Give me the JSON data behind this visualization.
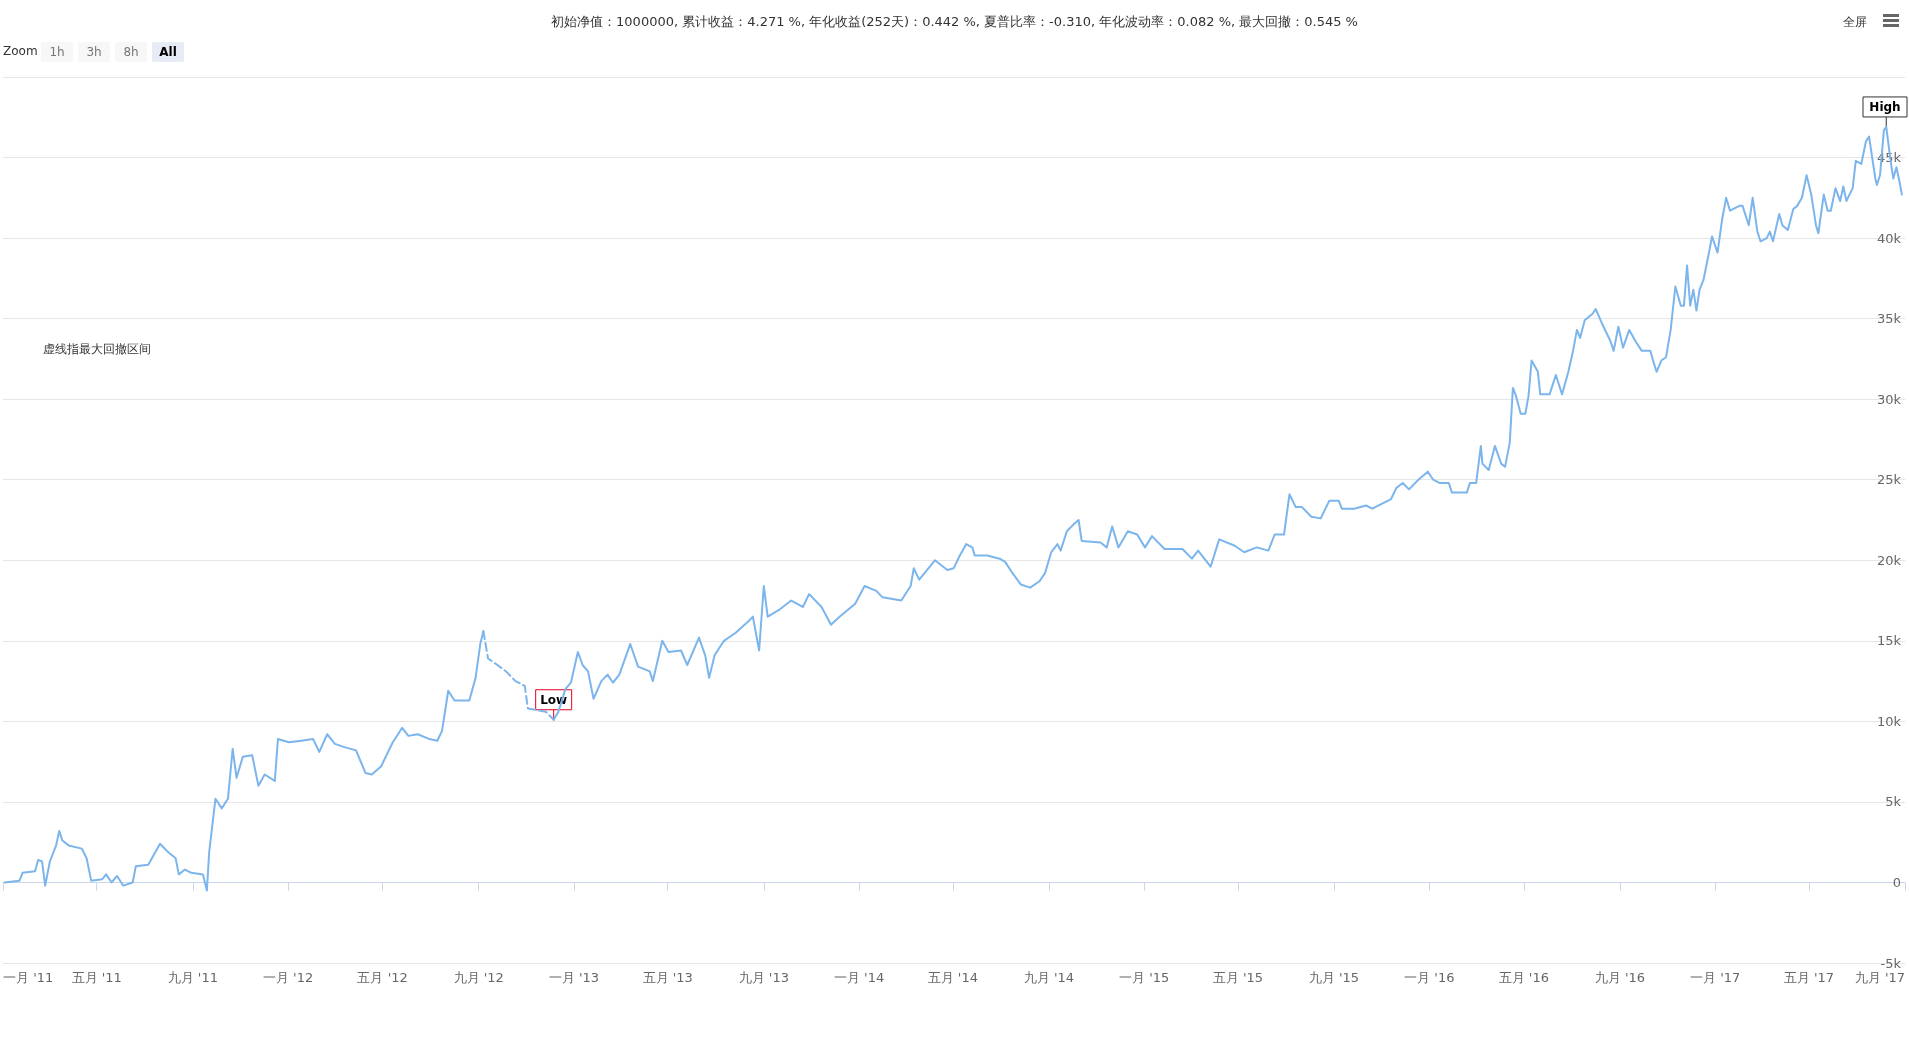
{
  "chart_data": {
    "type": "line",
    "title": "初始净值：1000000, 累计收益：4.271 %, 年化收益(252天)：0.442 %, 夏普比率：-0.310, 年化波动率：0.082 %, 最大回撤：0.545 %",
    "annotations": [
      "虚线指最大回撤区间",
      "Zoom",
      "1h",
      "3h",
      "8h",
      "All",
      "全屏",
      {
        "text": "Low",
        "x": "2012-12-06",
        "y": 10100
      },
      {
        "text": "High",
        "x": "2017-08-08",
        "y": 46900
      }
    ],
    "xlim": [
      "2011-01-01",
      "2017-09-01"
    ],
    "xticks": [
      {
        "value": "2011-01-01",
        "label": "一月 '11"
      },
      {
        "value": "2011-05-01",
        "label": "五月 '11"
      },
      {
        "value": "2011-09-01",
        "label": "九月 '11"
      },
      {
        "value": "2012-01-01",
        "label": "一月 '12"
      },
      {
        "value": "2012-05-01",
        "label": "五月 '12"
      },
      {
        "value": "2012-09-01",
        "label": "九月 '12"
      },
      {
        "value": "2013-01-01",
        "label": "一月 '13"
      },
      {
        "value": "2013-05-01",
        "label": "五月 '13"
      },
      {
        "value": "2013-09-01",
        "label": "九月 '13"
      },
      {
        "value": "2014-01-01",
        "label": "一月 '14"
      },
      {
        "value": "2014-05-01",
        "label": "五月 '14"
      },
      {
        "value": "2014-09-01",
        "label": "九月 '14"
      },
      {
        "value": "2015-01-01",
        "label": "一月 '15"
      },
      {
        "value": "2015-05-01",
        "label": "五月 '15"
      },
      {
        "value": "2015-09-01",
        "label": "九月 '15"
      },
      {
        "value": "2016-01-01",
        "label": "一月 '16"
      },
      {
        "value": "2016-05-01",
        "label": "五月 '16"
      },
      {
        "value": "2016-09-01",
        "label": "九月 '16"
      },
      {
        "value": "2017-01-01",
        "label": "一月 '17"
      },
      {
        "value": "2017-05-01",
        "label": "五月 '17"
      },
      {
        "value": "2017-09-01",
        "label": "九月 '17"
      }
    ],
    "ylim": [
      -5000,
      50000
    ],
    "yticks": [
      {
        "value": -5000,
        "label": "-5k"
      },
      0,
      {
        "value": 5000,
        "label": "5k"
      },
      {
        "value": 10000,
        "label": "10k"
      },
      {
        "value": 15000,
        "label": "15k"
      },
      {
        "value": 20000,
        "label": "20k"
      },
      {
        "value": 25000,
        "label": "25k"
      },
      {
        "value": 30000,
        "label": "30k"
      },
      {
        "value": 35000,
        "label": "35k"
      },
      {
        "value": 40000,
        "label": "40k"
      },
      {
        "value": 45000,
        "label": "45k"
      },
      {
        "value": 50000,
        "label": null
      }
    ],
    "grid": "y",
    "series": [
      {
        "color": "#7cb5ec",
        "line_style": "solid",
        "x": [
          "2011-01-03",
          "2011-01-22",
          "2011-01-26",
          "2011-02-11",
          "2011-02-15",
          "2011-02-20",
          "2011-02-24",
          "2011-03-02",
          "2011-03-10",
          "2011-03-14",
          "2011-03-18",
          "2011-03-26",
          "2011-04-12",
          "2011-04-18",
          "2011-04-24",
          "2011-05-08",
          "2011-05-13",
          "2011-05-20",
          "2011-05-27",
          "2011-06-04",
          "2011-06-16",
          "2011-06-20",
          "2011-07-06",
          "2011-07-21",
          "2011-07-31",
          "2011-08-10",
          "2011-08-14",
          "2011-08-22",
          "2011-08-30",
          "2011-09-14",
          "2011-09-19",
          "2011-09-22",
          "2011-09-30",
          "2011-10-08",
          "2011-10-16",
          "2011-10-22",
          "2011-10-27",
          "2011-11-04",
          "2011-11-16",
          "2011-11-24",
          "2011-12-02",
          "2011-12-15",
          "2011-12-19",
          "2012-01-02",
          "2012-01-18",
          "2012-02-02",
          "2012-02-10",
          "2012-02-20",
          "2012-03-01",
          "2012-03-13",
          "2012-03-28",
          "2012-04-09",
          "2012-04-17",
          "2012-04-29",
          "2012-05-14",
          "2012-05-26",
          "2012-06-03",
          "2012-06-15",
          "2012-06-30",
          "2012-07-10",
          "2012-07-16",
          "2012-07-24",
          "2012-08-01",
          "2012-08-20",
          "2012-08-28",
          "2012-09-03",
          "2012-09-07"
        ],
        "values": [
          0,
          100,
          600,
          700,
          1400,
          1300,
          -200,
          1300,
          2300,
          3200,
          2600,
          2300,
          2100,
          1500,
          100,
          200,
          500,
          0,
          400,
          -200,
          0,
          1000,
          1100,
          2400,
          1900,
          1500,
          500,
          800,
          600,
          500,
          -500,
          1900,
          5200,
          4600,
          5200,
          8300,
          6500,
          7800,
          7900,
          6000,
          6700,
          6300,
          8900,
          8700,
          8800,
          8900,
          8100,
          9200,
          8600,
          8400,
          8200,
          6800,
          6700,
          7200,
          8700,
          9600,
          9100,
          9200,
          8900,
          8800,
          9400,
          11900,
          11300,
          11300,
          12700,
          14800,
          15600
        ]
      },
      {
        "color": "#7cb5ec",
        "line_style": "dashed",
        "x": [
          "2012-09-07",
          "2012-09-13",
          "2012-09-25",
          "2012-10-06",
          "2012-10-18",
          "2012-10-30",
          "2012-11-03",
          "2012-11-14",
          "2012-11-26",
          "2012-12-06"
        ],
        "values": [
          15600,
          13900,
          13500,
          13100,
          12500,
          12200,
          10800,
          10700,
          10600,
          10100
        ]
      },
      {
        "color": "#7cb5ec",
        "line_style": "solid",
        "x": [
          "2012-12-06",
          "2012-12-12",
          "2012-12-21",
          "2012-12-28",
          "2013-01-06",
          "2013-01-12",
          "2013-01-19",
          "2013-01-26",
          "2013-02-05",
          "2013-02-13",
          "2013-02-20",
          "2013-02-28",
          "2013-03-14",
          "2013-03-24",
          "2013-04-08",
          "2013-04-12",
          "2013-04-24",
          "2013-05-02",
          "2013-05-18",
          "2013-05-26",
          "2013-06-10",
          "2013-06-18",
          "2013-06-23",
          "2013-06-30",
          "2013-07-12",
          "2013-07-27",
          "2013-08-12",
          "2013-08-18",
          "2013-08-26",
          "2013-09-01",
          "2013-09-06",
          "2013-09-20",
          "2013-10-06",
          "2013-10-21",
          "2013-10-29",
          "2013-11-14",
          "2013-11-26",
          "2013-12-07",
          "2013-12-27",
          "2014-01-08",
          "2014-01-23",
          "2014-01-31",
          "2014-02-24",
          "2014-03-08",
          "2014-03-12",
          "2014-03-19",
          "2014-04-08",
          "2014-04-24",
          "2014-05-02",
          "2014-05-10",
          "2014-05-18",
          "2014-05-26",
          "2014-05-29",
          "2014-06-14",
          "2014-06-30",
          "2014-07-07",
          "2014-07-15",
          "2014-07-27",
          "2014-08-08",
          "2014-08-20",
          "2014-08-27",
          "2014-09-04",
          "2014-09-12",
          "2014-09-16",
          "2014-09-24",
          "2014-10-02",
          "2014-10-09",
          "2014-10-13",
          "2014-11-06",
          "2014-11-14",
          "2014-11-21",
          "2014-11-29",
          "2014-12-11",
          "2014-12-23",
          "2015-01-02",
          "2015-01-11",
          "2015-01-27",
          "2015-02-19",
          "2015-03-03",
          "2015-03-11",
          "2015-03-27",
          "2015-04-07",
          "2015-04-27",
          "2015-05-09",
          "2015-05-25",
          "2015-06-09",
          "2015-06-17",
          "2015-06-29",
          "2015-07-06",
          "2015-07-14",
          "2015-07-22",
          "2015-08-03",
          "2015-08-15",
          "2015-08-26",
          "2015-09-07",
          "2015-09-11",
          "2015-09-27",
          "2015-10-12",
          "2015-10-20",
          "2015-11-13",
          "2015-11-20",
          "2015-11-28",
          "2015-12-06",
          "2015-12-18",
          "2015-12-30",
          "2016-01-06",
          "2016-01-14",
          "2016-01-26",
          "2016-01-30",
          "2016-02-18",
          "2016-02-22",
          "2016-03-01",
          "2016-03-07",
          "2016-03-09",
          "2016-03-17",
          "2016-03-25",
          "2016-04-02",
          "2016-04-07",
          "2016-04-13",
          "2016-04-17",
          "2016-04-21",
          "2016-04-27",
          "2016-05-03",
          "2016-05-07",
          "2016-05-11",
          "2016-05-19",
          "2016-05-22",
          "2016-06-03",
          "2016-06-11",
          "2016-06-19",
          "2016-06-27",
          "2016-07-03",
          "2016-07-08",
          "2016-07-12",
          "2016-07-18",
          "2016-07-28",
          "2016-08-01",
          "2016-08-09",
          "2016-08-20",
          "2016-08-24",
          "2016-08-30",
          "2016-09-05",
          "2016-09-13",
          "2016-09-21",
          "2016-09-29",
          "2016-10-10",
          "2016-10-14",
          "2016-10-18",
          "2016-10-24",
          "2016-10-30",
          "2016-11-05",
          "2016-11-11",
          "2016-11-18",
          "2016-11-22",
          "2016-11-26",
          "2016-11-30",
          "2016-12-04",
          "2016-12-08",
          "2016-12-12",
          "2016-12-17",
          "2016-12-24",
          "2016-12-28",
          "2017-01-04",
          "2017-01-10",
          "2017-01-15",
          "2017-01-20",
          "2017-02-01",
          "2017-02-05",
          "2017-02-13",
          "2017-02-18",
          "2017-02-24",
          "2017-02-28",
          "2017-03-08",
          "2017-03-12",
          "2017-03-16",
          "2017-03-24",
          "2017-03-28",
          "2017-04-04",
          "2017-04-11",
          "2017-04-16",
          "2017-04-22",
          "2017-04-28",
          "2017-05-04",
          "2017-05-10",
          "2017-05-13",
          "2017-05-20",
          "2017-05-25",
          "2017-05-29",
          "2017-06-04",
          "2017-06-10",
          "2017-06-14",
          "2017-06-18",
          "2017-06-26",
          "2017-06-30",
          "2017-07-07",
          "2017-07-13",
          "2017-07-17",
          "2017-07-21",
          "2017-07-25",
          "2017-07-27",
          "2017-07-31",
          "2017-08-05",
          "2017-08-08",
          "2017-08-13",
          "2017-08-17",
          "2017-08-21",
          "2017-08-25",
          "2017-08-28"
        ],
        "values": [
          10100,
          10600,
          12000,
          12400,
          14300,
          13500,
          13100,
          11400,
          12500,
          12900,
          12400,
          12900,
          14800,
          13400,
          13100,
          12500,
          15000,
          14300,
          14400,
          13500,
          15200,
          14100,
          12700,
          14100,
          15000,
          15500,
          16200,
          16500,
          14400,
          18400,
          16500,
          16900,
          17500,
          17100,
          17900,
          17100,
          16000,
          16500,
          17300,
          18400,
          18100,
          17700,
          17500,
          18400,
          19500,
          18800,
          20000,
          19400,
          19500,
          20300,
          21000,
          20800,
          20300,
          20300,
          20100,
          19900,
          19300,
          18500,
          18300,
          18700,
          19200,
          20500,
          21000,
          20600,
          21800,
          22200,
          22500,
          21200,
          21100,
          20800,
          22100,
          20800,
          21800,
          21600,
          20800,
          21500,
          20700,
          20700,
          20100,
          20600,
          19600,
          21300,
          20900,
          20500,
          20800,
          20600,
          21600,
          21600,
          24100,
          23300,
          23300,
          22700,
          22600,
          23700,
          23700,
          23200,
          23200,
          23400,
          23200,
          23800,
          24500,
          24800,
          24400,
          25000,
          25500,
          25000,
          24800,
          24800,
          24200,
          24200,
          24800,
          24800,
          27100,
          26000,
          25600,
          27100,
          26000,
          25800,
          27300,
          30700,
          30200,
          29100,
          29100,
          30200,
          32400,
          31700,
          30300,
          30300,
          31500,
          30300,
          31700,
          33000,
          34300,
          33800,
          34900,
          35300,
          35600,
          34700,
          33600,
          33000,
          34500,
          33200,
          34300,
          33600,
          33000,
          33000,
          32300,
          31700,
          32400,
          32600,
          34300,
          37000,
          35800,
          35800,
          38300,
          35800,
          36800,
          35500,
          36800,
          37400,
          39100,
          40100,
          39100,
          41200,
          42500,
          41700,
          42000,
          42000,
          40800,
          42500,
          40400,
          39800,
          40000,
          40400,
          39800,
          41500,
          40800,
          40500,
          41800,
          42000,
          42500,
          43900,
          42700,
          40800,
          40300,
          42700,
          41700,
          41700,
          43100,
          42300,
          43200,
          42300,
          43100,
          44800,
          44600,
          46000,
          46300,
          45000,
          43700,
          43300,
          43900,
          46700,
          46900,
          45000,
          43700,
          44400,
          43500,
          42700
        ]
      }
    ]
  }
}
